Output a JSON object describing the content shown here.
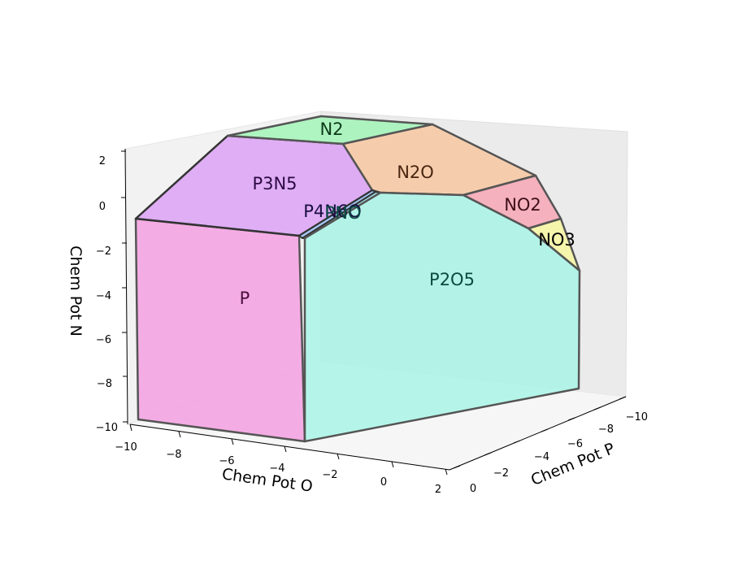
{
  "chart_data": {
    "type": "3d-polyhedron",
    "axes": {
      "x": {
        "label": "Chem Pot O",
        "range": [
          -10,
          2
        ],
        "ticks": [
          "−10",
          "−8",
          "−6",
          "−4",
          "−2",
          "0",
          "2"
        ]
      },
      "y": {
        "label": "Chem Pot P",
        "range": [
          -10,
          0
        ],
        "ticks": [
          "0",
          "−2",
          "−4",
          "−6",
          "−8",
          "−10"
        ]
      },
      "z": {
        "label": "Chem Pot N",
        "range": [
          -10,
          2
        ],
        "ticks": [
          "−10",
          "−8",
          "−6",
          "−4",
          "−2",
          "0",
          "2"
        ]
      }
    },
    "regions": [
      {
        "name": "P",
        "color": "#f49ae0"
      },
      {
        "name": "P3N5",
        "color": "#d99cf5"
      },
      {
        "name": "N2",
        "color": "#9ef5b4"
      },
      {
        "name": "N2O",
        "color": "#f9c59c"
      },
      {
        "name": "NO2",
        "color": "#f7a3b1"
      },
      {
        "name": "NO3",
        "color": "#f7f79c"
      },
      {
        "name": "P2O5",
        "color": "#a5f5e6"
      },
      {
        "name": "P4N6O",
        "color": "#9cc4f5"
      },
      {
        "name": "PNO",
        "color": "#9ce0e8"
      }
    ],
    "grid": false,
    "legend": "none"
  }
}
